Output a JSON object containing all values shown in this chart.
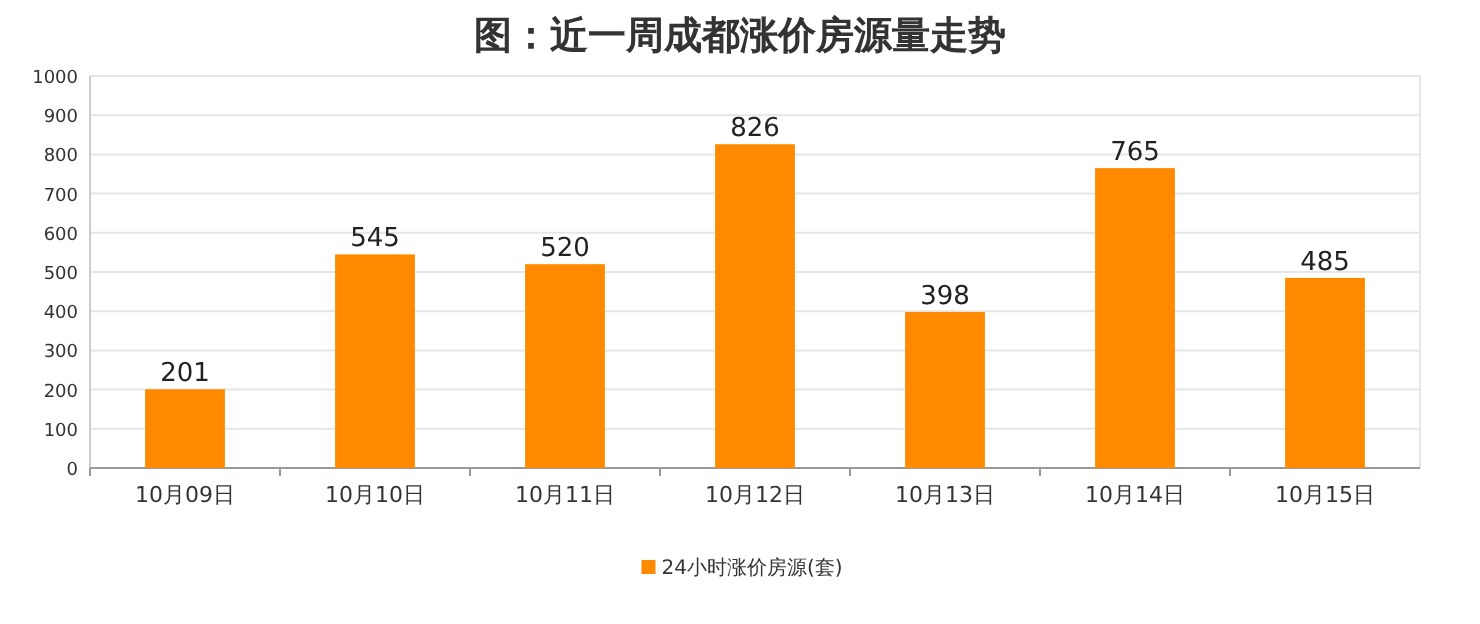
{
  "chart_data": {
    "type": "bar",
    "title": "图：近一周成都涨价房源量走势",
    "categories": [
      "10月09日",
      "10月10日",
      "10月11日",
      "10月12日",
      "10月13日",
      "10月14日",
      "10月15日"
    ],
    "series": [
      {
        "name": "24小时涨价房源(套)",
        "color": "#ff8a00",
        "values": [
          201,
          545,
          520,
          826,
          398,
          765,
          485
        ]
      }
    ],
    "ylim": [
      0,
      1000
    ],
    "yticks": [
      0,
      100,
      200,
      300,
      400,
      500,
      600,
      700,
      800,
      900,
      1000
    ],
    "grid": "y",
    "legend": "bottom",
    "data_labels": true
  }
}
